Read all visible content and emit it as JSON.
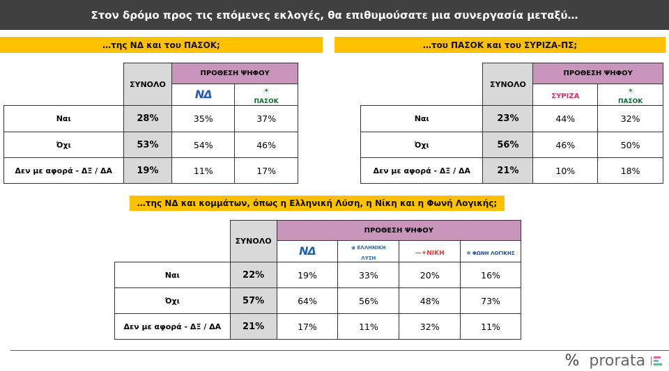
{
  "title": "Στον δρόμο προς τις επόμενες εκλογές, θα επιθυμούσατε μια συνεργασία μεταξύ…",
  "tables": [
    {
      "heading": "…της ΝΔ και του ΠΑΣΟΚ;",
      "total_label": "ΣΥΝΟΛΟ",
      "group_label": "ΠΡΟΘΕΣΗ ΨΗΦΟΥ",
      "parties": [
        "ΝΔ",
        "ΠΑΣΟΚ"
      ],
      "rows": [
        {
          "label": "Ναι",
          "total": "28%",
          "values": [
            "35%",
            "37%"
          ]
        },
        {
          "label": "Όχι",
          "total": "53%",
          "values": [
            "54%",
            "46%"
          ]
        },
        {
          "label": "Δεν με αφορά - ΔΞ / ΔΑ",
          "total": "19%",
          "values": [
            "11%",
            "17%"
          ]
        }
      ]
    },
    {
      "heading": "…του ΠΑΣΟΚ και του ΣΥΡΙΖΑ-ΠΣ;",
      "total_label": "ΣΥΝΟΛΟ",
      "group_label": "ΠΡΟΘΕΣΗ ΨΗΦΟΥ",
      "parties": [
        "ΣΥΡΙΖΑ",
        "ΠΑΣΟΚ"
      ],
      "rows": [
        {
          "label": "Ναι",
          "total": "23%",
          "values": [
            "44%",
            "32%"
          ]
        },
        {
          "label": "Όχι",
          "total": "56%",
          "values": [
            "46%",
            "50%"
          ]
        },
        {
          "label": "Δεν με αφορά - ΔΞ / ΔΑ",
          "total": "21%",
          "values": [
            "10%",
            "18%"
          ]
        }
      ]
    },
    {
      "heading": "…της ΝΔ και κομμάτων, όπως η Ελληνική Λύση, η Νίκη και η Φωνή Λογικής;",
      "total_label": "ΣΥΝΟΛΟ",
      "group_label": "ΠΡΟΘΕΣΗ ΨΗΦΟΥ",
      "parties": [
        "ΝΔ",
        "ΕΛΛΗΝΙΚΗ ΛΥΣΗ",
        "ΝΙΚΗ",
        "ΦΩΝΗ ΛΟΓΙΚΗΣ"
      ],
      "rows": [
        {
          "label": "Ναι",
          "total": "22%",
          "values": [
            "19%",
            "33%",
            "20%",
            "16%"
          ]
        },
        {
          "label": "Όχι",
          "total": "57%",
          "values": [
            "64%",
            "56%",
            "48%",
            "73%"
          ]
        },
        {
          "label": "Δεν με αφορά - ΔΞ / ΔΑ",
          "total": "21%",
          "values": [
            "17%",
            "11%",
            "32%",
            "11%"
          ]
        }
      ]
    }
  ],
  "brand": {
    "symbol": "%",
    "name": "prorata"
  },
  "colors": {
    "title_bg": "#404040",
    "heading_bg": "#ffc000",
    "group_bg": "#c994bb",
    "total_bg": "#d9d9d9"
  }
}
